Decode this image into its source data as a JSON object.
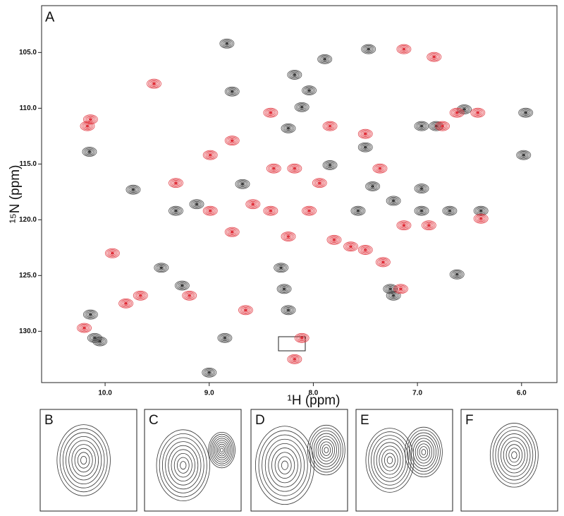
{
  "chart_data": {
    "type": "scatter",
    "x_label": "¹H (ppm)",
    "y_label": "¹⁵N (ppm)",
    "xlim": [
      10.61,
      5.66
    ],
    "ylim": [
      134.6,
      100.8
    ],
    "xticks": [
      {
        "value": 10,
        "label": "10.0"
      },
      {
        "value": 9,
        "label": "9.0"
      },
      {
        "value": 8,
        "label": "8.0"
      },
      {
        "value": 7,
        "label": "7.0"
      },
      {
        "value": 6,
        "label": "6.0"
      }
    ],
    "yticks": [
      {
        "value": 105,
        "label": "105.0"
      },
      {
        "value": 110,
        "label": "110.0"
      },
      {
        "value": 115,
        "label": "115.0"
      },
      {
        "value": 120,
        "label": "120.0"
      },
      {
        "value": 125,
        "label": "125.0"
      },
      {
        "value": 130,
        "label": "130.0"
      }
    ],
    "series": [
      {
        "color": "#3c3c3c",
        "x": [
          10.15,
          10.14,
          10.1,
          10.05,
          9.73,
          9.0,
          8.83,
          8.78,
          8.68,
          8.28,
          8.24,
          8.18,
          8.11,
          8.04,
          7.89,
          8.24,
          7.84,
          7.57,
          7.5,
          7.43,
          7.23,
          6.96,
          7.23,
          6.96,
          6.55,
          6.69,
          6.39,
          5.98,
          5.96,
          6.62,
          7.26,
          7.47,
          6.96,
          6.82,
          8.31,
          8.85,
          9.26,
          9.46,
          9.32,
          9.12
        ],
        "values": [
          113.9,
          128.5,
          130.6,
          130.9,
          117.3,
          133.7,
          104.2,
          108.5,
          116.8,
          126.2,
          128.1,
          107.0,
          109.9,
          108.4,
          105.6,
          111.8,
          115.1,
          119.2,
          113.5,
          117.0,
          118.3,
          119.2,
          126.8,
          111.6,
          110.1,
          119.2,
          119.2,
          114.2,
          110.4,
          124.9,
          126.2,
          104.7,
          117.2,
          111.6,
          124.3,
          130.6,
          125.9,
          124.3,
          119.2,
          118.6
        ]
      },
      {
        "color": "#e0303a",
        "x": [
          10.17,
          10.2,
          9.93,
          9.8,
          9.53,
          9.32,
          8.99,
          8.78,
          8.58,
          8.41,
          8.38,
          8.41,
          8.24,
          8.18,
          8.04,
          7.84,
          7.64,
          7.5,
          7.36,
          7.13,
          6.84,
          6.76,
          6.62,
          6.42,
          6.39,
          6.89,
          7.16,
          7.5,
          7.33,
          8.99,
          8.78,
          8.65,
          9.19,
          9.66,
          10.14,
          8.11,
          7.8,
          7.94,
          8.18,
          7.13
        ],
        "values": [
          111.6,
          129.7,
          123.0,
          127.5,
          107.8,
          116.7,
          119.2,
          121.1,
          118.6,
          110.4,
          115.4,
          119.2,
          121.5,
          115.4,
          119.2,
          111.6,
          122.4,
          112.3,
          115.4,
          104.7,
          105.4,
          111.6,
          110.4,
          110.4,
          119.9,
          120.5,
          126.2,
          122.7,
          123.8,
          114.2,
          112.9,
          128.1,
          126.8,
          126.8,
          111.0,
          130.6,
          121.8,
          116.7,
          132.5,
          120.5
        ]
      }
    ]
  },
  "panels": [
    "A",
    "B",
    "C",
    "D",
    "E",
    "F"
  ]
}
